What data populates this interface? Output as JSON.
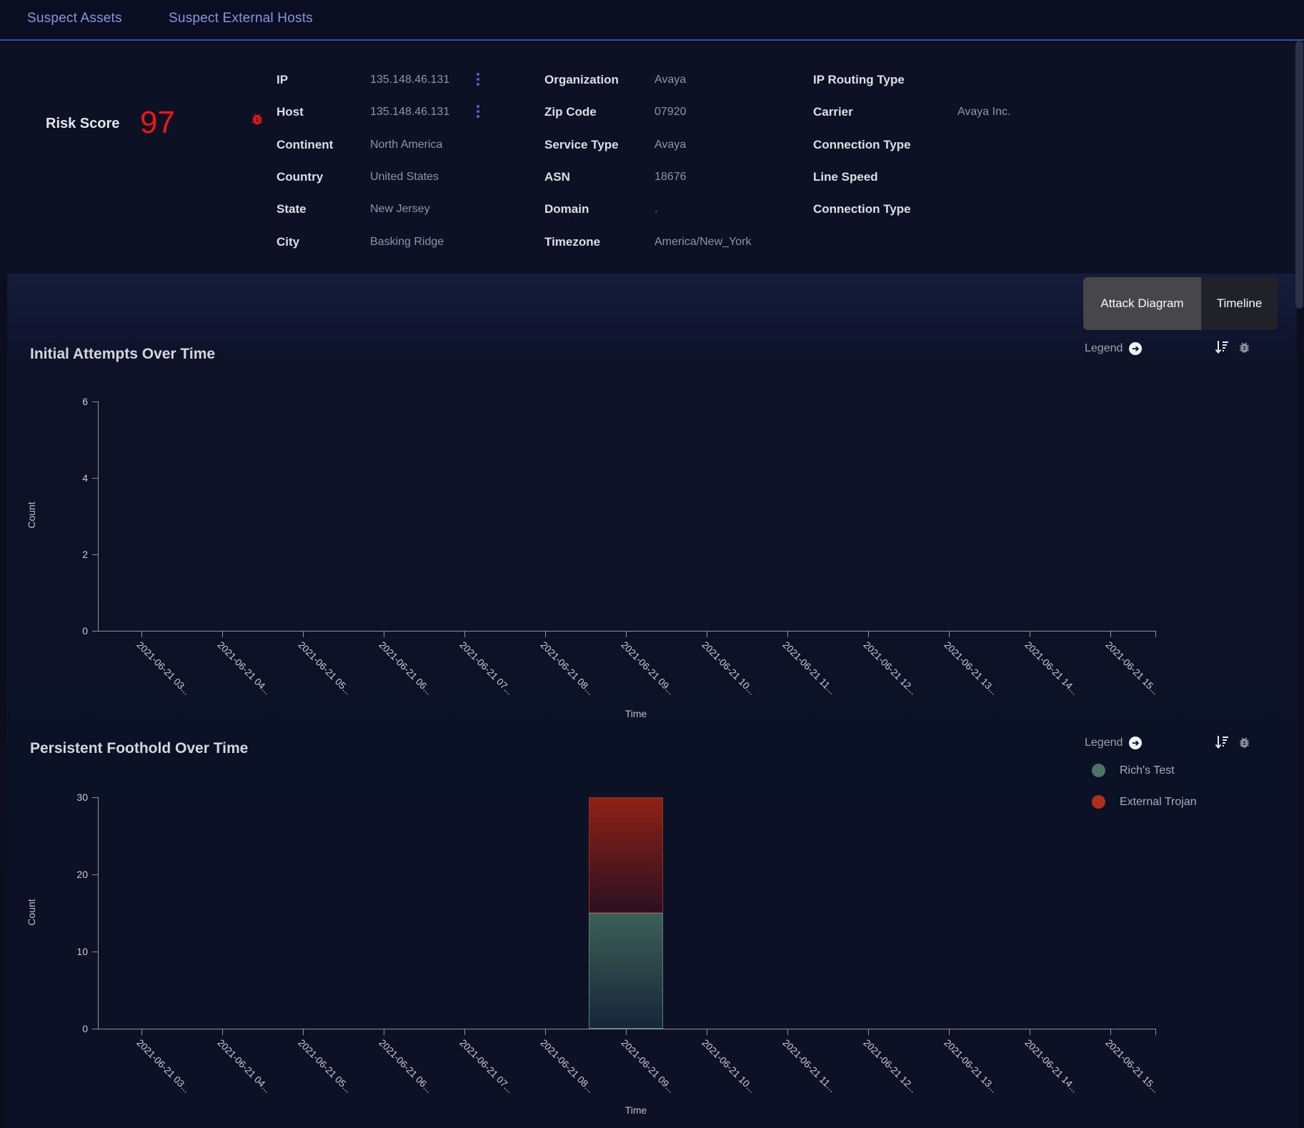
{
  "header": {
    "tabs": [
      {
        "label": "Suspect Assets"
      },
      {
        "label": "Suspect External Hosts"
      }
    ]
  },
  "risk_score": {
    "label": "Risk Score",
    "value": "97",
    "color": "#ef1616"
  },
  "host_details": {
    "column1": [
      {
        "label": "IP",
        "value": "135.148.46.131",
        "menu": true,
        "flagged": true
      },
      {
        "label": "Host",
        "value": "135.148.46.131",
        "menu": true
      },
      {
        "label": "Continent",
        "value": "North America"
      },
      {
        "label": "Country",
        "value": "United States"
      },
      {
        "label": "State",
        "value": "New Jersey"
      },
      {
        "label": "City",
        "value": "Basking Ridge"
      }
    ],
    "column2": [
      {
        "label": "Organization",
        "value": "Avaya"
      },
      {
        "label": "Zip Code",
        "value": "07920"
      },
      {
        "label": "Service Type",
        "value": "Avaya"
      },
      {
        "label": "ASN",
        "value": "18676"
      },
      {
        "label": "Domain",
        "value": "."
      },
      {
        "label": "Timezone",
        "value": "America/New_York"
      }
    ],
    "column3": [
      {
        "label": "IP Routing Type",
        "value": ""
      },
      {
        "label": "Carrier",
        "value": "Avaya Inc."
      },
      {
        "label": "Connection Type",
        "value": ""
      },
      {
        "label": "Line Speed",
        "value": ""
      },
      {
        "label": "Connection Type",
        "value": ""
      }
    ]
  },
  "view_toggle": {
    "options": [
      {
        "label": "Attack Diagram",
        "selected": true
      },
      {
        "label": "Timeline",
        "selected": false
      }
    ]
  },
  "legend": {
    "label": "Legend"
  },
  "chart_data": [
    {
      "type": "bar",
      "title": "Initial Attempts Over Time",
      "xlabel": "Time",
      "ylabel": "Count",
      "ylim": [
        0,
        6
      ],
      "yticks": [
        0,
        2,
        4,
        6
      ],
      "grid": false,
      "legend_position": "top-right",
      "categories": [
        "2021-06-21 03...",
        "2021-06-21 04...",
        "2021-06-21 05...",
        "2021-06-21 06...",
        "2021-06-21 07...",
        "2021-06-21 08...",
        "2021-06-21 09...",
        "2021-06-21 10...",
        "2021-06-21 11...",
        "2021-06-21 12...",
        "2021-06-21 13...",
        "2021-06-21 14...",
        "2021-06-21 15..."
      ],
      "series": []
    },
    {
      "type": "stacked-bar",
      "title": "Persistent Foothold Over Time",
      "xlabel": "Time",
      "ylabel": "Count",
      "ylim": [
        0,
        30
      ],
      "yticks": [
        0,
        10,
        20,
        30
      ],
      "grid": false,
      "legend_position": "top-right",
      "categories": [
        "2021-06-21 03...",
        "2021-06-21 04...",
        "2021-06-21 05...",
        "2021-06-21 06...",
        "2021-06-21 07...",
        "2021-06-21 08...",
        "2021-06-21 09...",
        "2021-06-21 10...",
        "2021-06-21 11...",
        "2021-06-21 12...",
        "2021-06-21 13...",
        "2021-06-21 14...",
        "2021-06-21 15..."
      ],
      "series": [
        {
          "name": "Rich's Test",
          "color": "#4c7366",
          "gradient_top": "#3c5f57",
          "gradient_bottom": "#172639",
          "border": "#5d8076",
          "values": [
            0,
            0,
            0,
            0,
            0,
            0,
            15,
            0,
            0,
            0,
            0,
            0,
            0
          ]
        },
        {
          "name": "External Trojan",
          "color": "#b12f1e",
          "gradient_top": "#8e2115",
          "gradient_bottom": "#2b1023",
          "border": "#9b2e1d",
          "values": [
            0,
            0,
            0,
            0,
            0,
            0,
            15,
            0,
            0,
            0,
            0,
            0,
            0
          ]
        }
      ]
    }
  ]
}
